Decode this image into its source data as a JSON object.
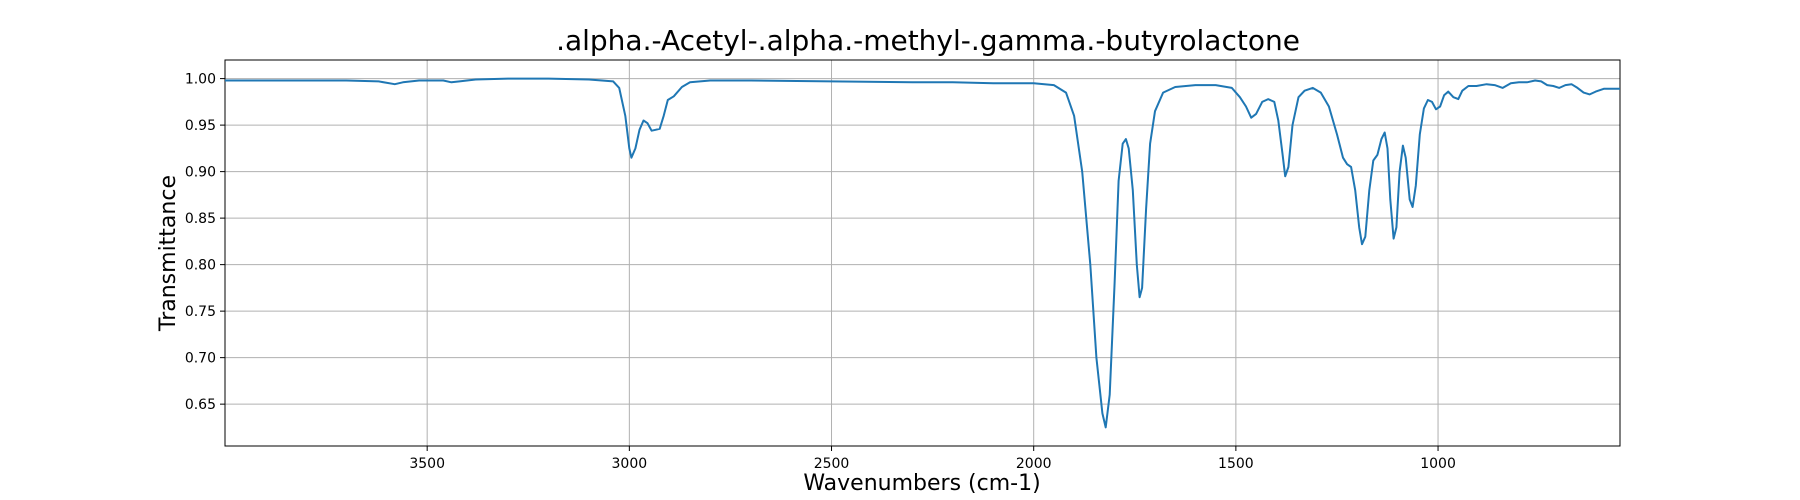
{
  "chart_data": {
    "type": "line",
    "title": ".alpha.-Acetyl-.alpha.-methyl-.gamma.-butyrolactone",
    "xlabel": "Wavenumbers (cm-1)",
    "ylabel": "Transmittance",
    "xlim": [
      4000,
      550
    ],
    "ylim": [
      0.605,
      1.02
    ],
    "x_reversed": true,
    "grid": true,
    "xticks": [
      3500,
      3000,
      2500,
      2000,
      1500,
      1000
    ],
    "yticks": [
      0.65,
      0.7,
      0.75,
      0.8,
      0.85,
      0.9,
      0.95,
      1.0
    ],
    "series": [
      {
        "color": "#1f77b4",
        "points": [
          [
            4000,
            0.998
          ],
          [
            3900,
            0.998
          ],
          [
            3800,
            0.998
          ],
          [
            3700,
            0.998
          ],
          [
            3620,
            0.997
          ],
          [
            3580,
            0.994
          ],
          [
            3560,
            0.996
          ],
          [
            3520,
            0.998
          ],
          [
            3460,
            0.998
          ],
          [
            3440,
            0.996
          ],
          [
            3420,
            0.997
          ],
          [
            3380,
            0.999
          ],
          [
            3300,
            1.0
          ],
          [
            3200,
            1.0
          ],
          [
            3100,
            0.999
          ],
          [
            3040,
            0.997
          ],
          [
            3025,
            0.99
          ],
          [
            3010,
            0.96
          ],
          [
            3000,
            0.925
          ],
          [
            2995,
            0.915
          ],
          [
            2985,
            0.925
          ],
          [
            2975,
            0.945
          ],
          [
            2965,
            0.955
          ],
          [
            2955,
            0.952
          ],
          [
            2945,
            0.944
          ],
          [
            2935,
            0.945
          ],
          [
            2925,
            0.946
          ],
          [
            2915,
            0.96
          ],
          [
            2905,
            0.977
          ],
          [
            2890,
            0.981
          ],
          [
            2870,
            0.991
          ],
          [
            2850,
            0.996
          ],
          [
            2800,
            0.998
          ],
          [
            2700,
            0.998
          ],
          [
            2500,
            0.997
          ],
          [
            2300,
            0.996
          ],
          [
            2200,
            0.996
          ],
          [
            2100,
            0.995
          ],
          [
            2000,
            0.995
          ],
          [
            1950,
            0.993
          ],
          [
            1920,
            0.985
          ],
          [
            1900,
            0.96
          ],
          [
            1880,
            0.9
          ],
          [
            1860,
            0.8
          ],
          [
            1845,
            0.7
          ],
          [
            1830,
            0.64
          ],
          [
            1822,
            0.625
          ],
          [
            1812,
            0.66
          ],
          [
            1800,
            0.78
          ],
          [
            1790,
            0.89
          ],
          [
            1780,
            0.93
          ],
          [
            1772,
            0.935
          ],
          [
            1765,
            0.925
          ],
          [
            1755,
            0.88
          ],
          [
            1745,
            0.8
          ],
          [
            1738,
            0.765
          ],
          [
            1732,
            0.775
          ],
          [
            1722,
            0.86
          ],
          [
            1712,
            0.93
          ],
          [
            1700,
            0.965
          ],
          [
            1680,
            0.985
          ],
          [
            1650,
            0.991
          ],
          [
            1600,
            0.993
          ],
          [
            1550,
            0.993
          ],
          [
            1510,
            0.99
          ],
          [
            1490,
            0.98
          ],
          [
            1475,
            0.97
          ],
          [
            1462,
            0.958
          ],
          [
            1450,
            0.962
          ],
          [
            1435,
            0.975
          ],
          [
            1420,
            0.978
          ],
          [
            1405,
            0.975
          ],
          [
            1395,
            0.955
          ],
          [
            1385,
            0.92
          ],
          [
            1378,
            0.895
          ],
          [
            1370,
            0.905
          ],
          [
            1360,
            0.95
          ],
          [
            1345,
            0.98
          ],
          [
            1330,
            0.987
          ],
          [
            1310,
            0.99
          ],
          [
            1290,
            0.985
          ],
          [
            1270,
            0.97
          ],
          [
            1250,
            0.94
          ],
          [
            1235,
            0.915
          ],
          [
            1225,
            0.908
          ],
          [
            1215,
            0.905
          ],
          [
            1205,
            0.88
          ],
          [
            1195,
            0.84
          ],
          [
            1188,
            0.822
          ],
          [
            1180,
            0.83
          ],
          [
            1170,
            0.88
          ],
          [
            1160,
            0.912
          ],
          [
            1150,
            0.918
          ],
          [
            1140,
            0.935
          ],
          [
            1132,
            0.942
          ],
          [
            1125,
            0.925
          ],
          [
            1118,
            0.87
          ],
          [
            1110,
            0.828
          ],
          [
            1103,
            0.84
          ],
          [
            1095,
            0.9
          ],
          [
            1087,
            0.928
          ],
          [
            1080,
            0.915
          ],
          [
            1070,
            0.87
          ],
          [
            1063,
            0.862
          ],
          [
            1055,
            0.885
          ],
          [
            1045,
            0.94
          ],
          [
            1035,
            0.968
          ],
          [
            1025,
            0.977
          ],
          [
            1015,
            0.975
          ],
          [
            1005,
            0.967
          ],
          [
            995,
            0.97
          ],
          [
            985,
            0.982
          ],
          [
            975,
            0.986
          ],
          [
            962,
            0.98
          ],
          [
            950,
            0.978
          ],
          [
            940,
            0.987
          ],
          [
            925,
            0.992
          ],
          [
            905,
            0.992
          ],
          [
            880,
            0.994
          ],
          [
            860,
            0.993
          ],
          [
            840,
            0.99
          ],
          [
            820,
            0.995
          ],
          [
            800,
            0.996
          ],
          [
            780,
            0.996
          ],
          [
            760,
            0.998
          ],
          [
            745,
            0.997
          ],
          [
            730,
            0.993
          ],
          [
            715,
            0.992
          ],
          [
            700,
            0.99
          ],
          [
            685,
            0.993
          ],
          [
            670,
            0.994
          ],
          [
            655,
            0.99
          ],
          [
            640,
            0.985
          ],
          [
            625,
            0.983
          ],
          [
            610,
            0.986
          ],
          [
            590,
            0.989
          ],
          [
            570,
            0.989
          ],
          [
            550,
            0.989
          ]
        ]
      }
    ]
  }
}
